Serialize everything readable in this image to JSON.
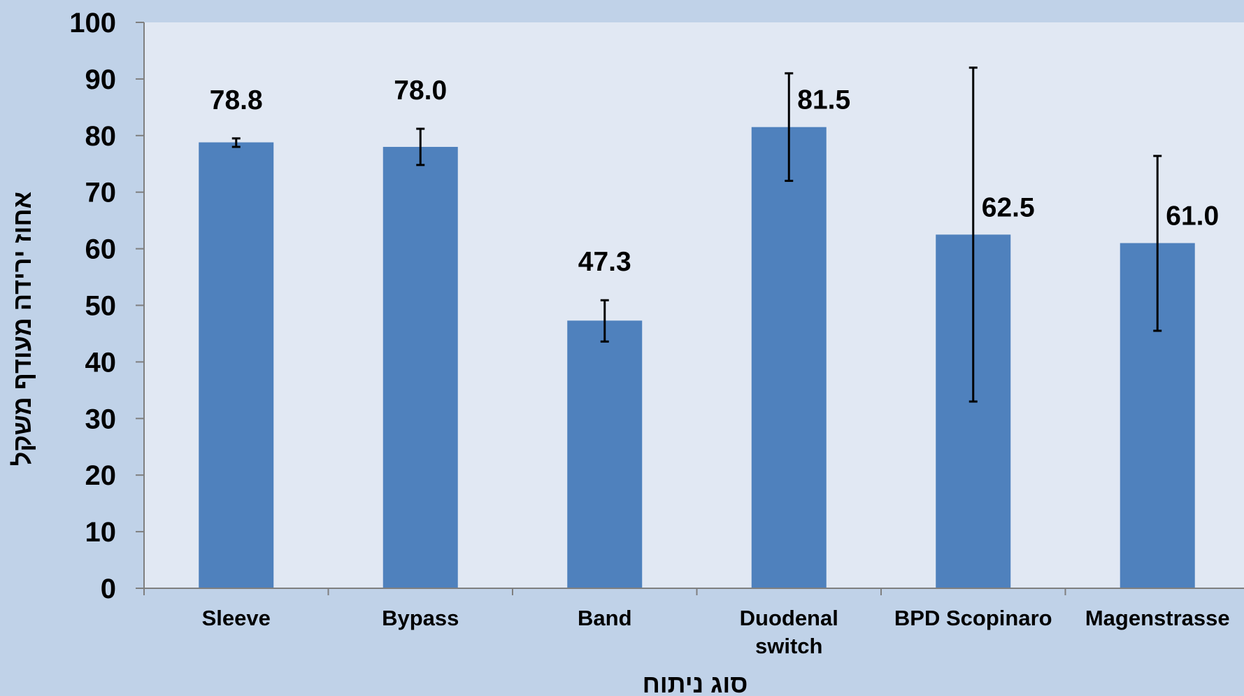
{
  "chart_data": {
    "type": "bar",
    "title": "",
    "xlabel": "סוג ניתוח",
    "ylabel": "אחוז ירידה מעודף משקל",
    "ylim": [
      0,
      100
    ],
    "yticks": [
      0,
      10,
      20,
      30,
      40,
      50,
      60,
      70,
      80,
      90,
      100
    ],
    "categories": [
      "Sleeve",
      "Bypass",
      "Band",
      "Duodenal switch",
      "BPD Scopinaro",
      "Magenstrasse"
    ],
    "category_label_lines": [
      [
        "Sleeve"
      ],
      [
        "Bypass"
      ],
      [
        "Band"
      ],
      [
        "Duodenal",
        "switch"
      ],
      [
        "BPD Scopinaro"
      ],
      [
        "Magenstrasse"
      ]
    ],
    "values": [
      78.8,
      78.0,
      47.3,
      81.5,
      62.5,
      61.0
    ],
    "value_labels": [
      "78.8",
      "78.0",
      "47.3",
      "81.5",
      "62.5",
      "61.0"
    ],
    "error_bars": [
      {
        "low": 78.0,
        "high": 79.5
      },
      {
        "low": 74.8,
        "high": 81.2
      },
      {
        "low": 43.6,
        "high": 50.9
      },
      {
        "low": 72.0,
        "high": 91.0
      },
      {
        "low": 33.0,
        "high": 92.0
      },
      {
        "low": 45.5,
        "high": 76.4
      }
    ],
    "grid": false,
    "legend": "none",
    "colors": {
      "bar": "#4f81bd",
      "plot_background": "#e1e8f3",
      "page_background": "#c0d2e8",
      "axis": "#7f7f7f",
      "error_bar": "#000000"
    }
  }
}
